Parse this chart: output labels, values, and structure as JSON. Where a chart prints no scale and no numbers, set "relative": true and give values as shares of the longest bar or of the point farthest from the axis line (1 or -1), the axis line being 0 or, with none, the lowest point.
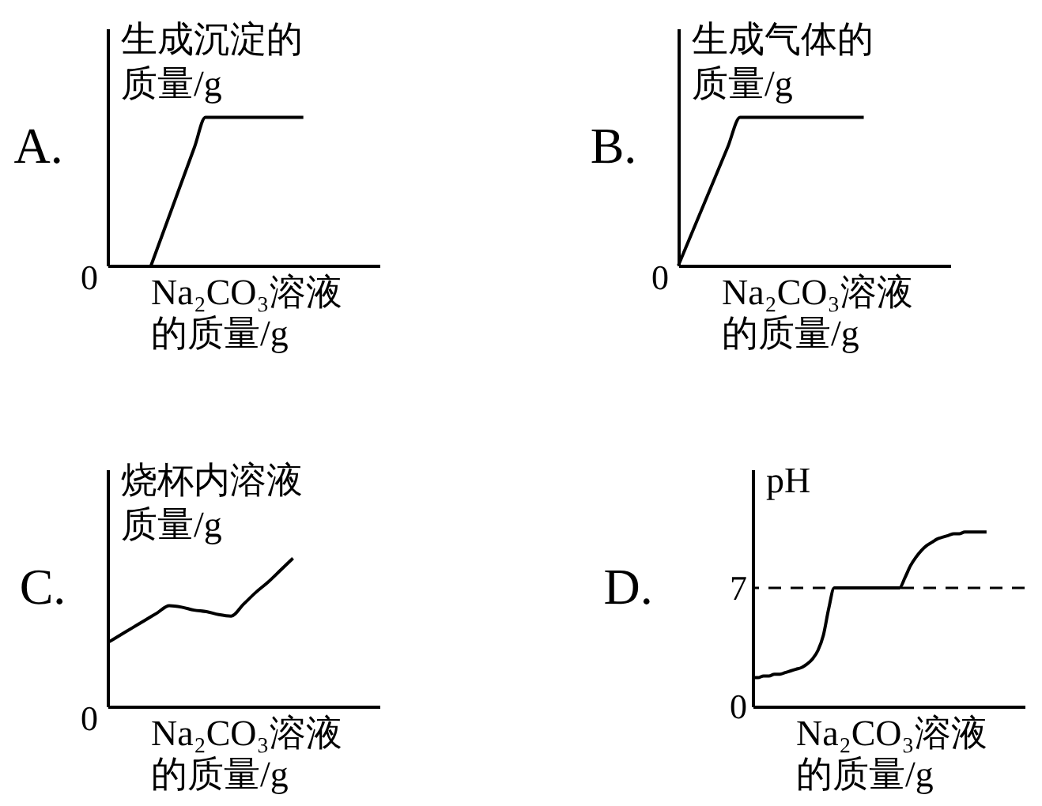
{
  "chart_data": [
    {
      "type": "line",
      "title": "A.",
      "ylabel": "生成沉淀的质量/g",
      "xlabel": "Na₂CO₃溶液的质量/g",
      "relative": true,
      "color": "#000000",
      "annotations": [
        "0"
      ],
      "categories": [
        null,
        null,
        null,
        null,
        null,
        null,
        null,
        null,
        null,
        null,
        null,
        null,
        null,
        null,
        null,
        null,
        null,
        null,
        null,
        null,
        null,
        null,
        null,
        null,
        null,
        null
      ],
      "values": [
        null,
        null,
        null,
        null,
        0,
        0.2,
        0.4,
        0.6,
        0.8,
        1,
        1,
        1,
        1,
        1,
        1,
        1,
        1,
        1,
        1,
        null,
        null,
        null,
        null,
        null,
        null,
        null
      ]
    },
    {
      "type": "line",
      "title": "B.",
      "ylabel": "生成气体的质量/g",
      "xlabel": "Na₂CO₃溶液的质量/g",
      "relative": true,
      "color": "#000000",
      "annotations": [
        "0"
      ],
      "categories": [
        null,
        null,
        null,
        null,
        null,
        null,
        null,
        null,
        null,
        null,
        null,
        null,
        null,
        null,
        null,
        null,
        null,
        null,
        null,
        null,
        null,
        null,
        null
      ],
      "values": [
        0,
        0.2,
        0.4,
        0.6,
        0.8,
        1,
        1,
        1,
        1,
        1,
        1,
        1,
        1,
        1,
        1,
        1,
        null,
        null,
        null,
        null,
        null,
        null,
        null
      ]
    },
    {
      "type": "line",
      "title": "C.",
      "ylabel": "烧杯内溶液质量/g",
      "xlabel": "Na₂CO₃溶液的质量/g",
      "relative": true,
      "color": "#000000",
      "annotations": [
        "0"
      ],
      "categories": [
        null,
        null,
        null,
        null,
        null,
        null,
        null,
        null,
        null,
        null,
        null,
        null,
        null,
        null,
        null,
        null,
        null,
        null,
        null,
        null,
        null,
        null,
        null
      ],
      "values": [
        0.43,
        0.48,
        0.53,
        0.58,
        0.63,
        0.68,
        0.67,
        0.65,
        0.64,
        0.62,
        0.61,
        0.69,
        0.77,
        0.84,
        0.92,
        1,
        null,
        null,
        null,
        null,
        null,
        null,
        null
      ]
    },
    {
      "type": "line",
      "title": "D.",
      "ylabel": "pH",
      "xlabel": "Na₂CO₃溶液的质量/g",
      "color": "#000000",
      "ylim": [
        0,
        14
      ],
      "yticks": [
        0,
        7
      ],
      "ref_lines": [
        {
          "axis": "y",
          "value": 7,
          "line_style": "dashed"
        }
      ],
      "categories": [
        null,
        null,
        null,
        null,
        null,
        null,
        null,
        null,
        null,
        null,
        null,
        null,
        null,
        null,
        null,
        null,
        null,
        null,
        null,
        null,
        null,
        null,
        null,
        null,
        null,
        null,
        null,
        null,
        null,
        null,
        null,
        null,
        null,
        null,
        null,
        null,
        null,
        null,
        null,
        null,
        null,
        null,
        null,
        null,
        null,
        null,
        null,
        null,
        null,
        null,
        null
      ],
      "values": [
        1.7,
        1.7,
        1.8,
        1.8,
        1.9,
        1.9,
        2.0,
        2.1,
        2.2,
        2.3,
        2.5,
        2.8,
        3.3,
        4.2,
        5.8,
        7,
        7,
        7,
        7,
        7,
        7,
        7,
        7,
        7,
        7,
        7,
        7,
        7,
        7.6,
        8.3,
        8.8,
        9.2,
        9.5,
        9.7,
        9.9,
        10.0,
        10.1,
        10.2,
        10.2,
        10.3,
        10.3,
        10.3,
        10.3,
        10.3,
        null,
        null,
        null,
        null,
        null,
        null,
        null
      ]
    }
  ]
}
